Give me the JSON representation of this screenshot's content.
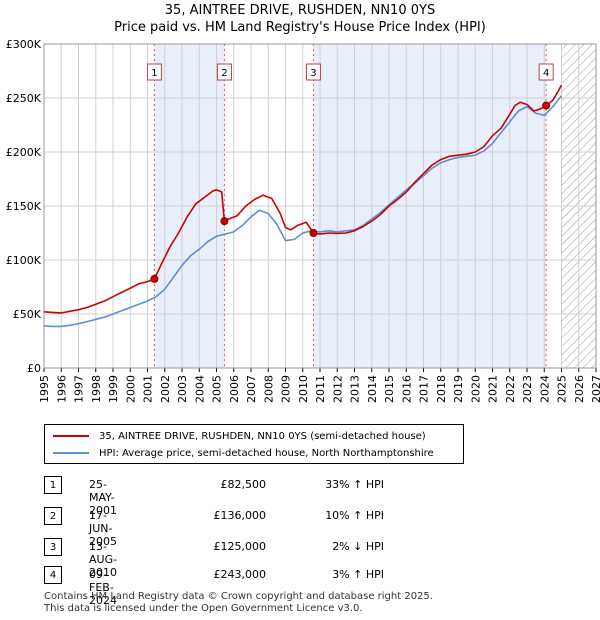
{
  "title_line1": "35, AINTREE DRIVE, RUSHDEN, NN10 0YS",
  "title_line2": "Price paid vs. HM Land Registry's House Price Index (HPI)",
  "chart_data": {
    "type": "line",
    "xlim": [
      1995,
      2027
    ],
    "ylim": [
      0,
      300000
    ],
    "y_ticks": [
      0,
      50000,
      100000,
      150000,
      200000,
      250000,
      300000
    ],
    "y_tick_labels": [
      "£0",
      "£50K",
      "£100K",
      "£150K",
      "£200K",
      "£250K",
      "£300K"
    ],
    "x_ticks": [
      1995,
      1996,
      1997,
      1998,
      1999,
      2000,
      2001,
      2002,
      2003,
      2004,
      2005,
      2006,
      2007,
      2008,
      2009,
      2010,
      2011,
      2012,
      2013,
      2014,
      2015,
      2016,
      2017,
      2018,
      2019,
      2020,
      2021,
      2022,
      2023,
      2024,
      2025,
      2026,
      2027
    ],
    "x_tick_labels": [
      "1995",
      "1996",
      "1997",
      "1998",
      "1999",
      "2000",
      "2001",
      "2002",
      "2003",
      "2004",
      "2005",
      "2006",
      "2007",
      "2008",
      "2009",
      "2010",
      "2011",
      "2012",
      "2013",
      "2014",
      "2015",
      "2016",
      "2017",
      "2018",
      "2019",
      "2020",
      "2021",
      "2022",
      "2023",
      "2024",
      "2025",
      "2026",
      "2027"
    ],
    "grid": true,
    "shaded_spans": [
      [
        2001.4,
        2005.46
      ],
      [
        2010.62,
        2024.11
      ]
    ],
    "forecast_start": 2025.0,
    "series": [
      {
        "name": "35, AINTREE DRIVE, RUSHDEN, NN10 0YS (semi-detached house)",
        "color": "#cc0000",
        "x": [
          1995,
          1995.5,
          1996,
          1996.5,
          1997,
          1997.5,
          1998,
          1998.5,
          1999,
          1999.5,
          2000,
          2000.5,
          2001,
          2001.4,
          2001.8,
          2002.3,
          2002.8,
          2003.3,
          2003.8,
          2004.3,
          2004.8,
          2005.0,
          2005.3,
          2005.46,
          2005.7,
          2006.2,
          2006.7,
          2007.2,
          2007.7,
          2008.2,
          2008.7,
          2009.0,
          2009.3,
          2009.7,
          2010.2,
          2010.62,
          2011,
          2011.5,
          2012,
          2012.5,
          2013,
          2013.5,
          2014,
          2014.5,
          2015,
          2015.5,
          2016,
          2016.5,
          2017,
          2017.5,
          2018,
          2018.5,
          2019,
          2019.5,
          2020,
          2020.5,
          2021,
          2021.5,
          2022,
          2022.3,
          2022.6,
          2023,
          2023.4,
          2023.8,
          2024.11,
          2024.5,
          2024.8,
          2025.0
        ],
        "values": [
          52000,
          51500,
          51000,
          52500,
          54000,
          56000,
          59000,
          62000,
          66000,
          70000,
          74000,
          78000,
          80000,
          82500,
          96000,
          112000,
          125000,
          140000,
          152000,
          158000,
          164000,
          165000,
          163000,
          136000,
          138000,
          141000,
          150000,
          156000,
          160000,
          157000,
          143000,
          130000,
          128000,
          132000,
          135000,
          125000,
          124000,
          125000,
          124500,
          125000,
          127000,
          131000,
          136000,
          142000,
          150000,
          156000,
          163000,
          172000,
          180000,
          188000,
          193000,
          196000,
          197000,
          198000,
          200000,
          205000,
          215000,
          222000,
          235000,
          243000,
          246000,
          244000,
          238000,
          240000,
          243000,
          248000,
          256000,
          262000
        ]
      },
      {
        "name": "HPI: Average price, semi-detached house, North Northamptonshire",
        "color": "#5b8fd6",
        "x": [
          1995,
          1995.5,
          1996,
          1996.5,
          1997,
          1997.5,
          1998,
          1998.5,
          1999,
          1999.5,
          2000,
          2000.5,
          2001,
          2001.5,
          2002,
          2002.5,
          2003,
          2003.5,
          2004,
          2004.5,
          2005,
          2005.5,
          2006,
          2006.5,
          2007,
          2007.5,
          2008,
          2008.5,
          2009,
          2009.5,
          2010,
          2010.5,
          2011,
          2011.5,
          2012,
          2012.5,
          2013,
          2013.5,
          2014,
          2014.5,
          2015,
          2015.5,
          2016,
          2016.5,
          2017,
          2017.5,
          2018,
          2018.5,
          2019,
          2019.5,
          2020,
          2020.5,
          2021,
          2021.5,
          2022,
          2022.5,
          2023,
          2023.5,
          2024,
          2024.5,
          2025.0
        ],
        "values": [
          39000,
          38500,
          38500,
          39500,
          41000,
          43000,
          45000,
          47000,
          50000,
          53000,
          56000,
          59000,
          62000,
          66000,
          73000,
          84000,
          95000,
          104000,
          110000,
          117000,
          122000,
          124000,
          126000,
          132000,
          140000,
          146000,
          143000,
          133000,
          118000,
          119000,
          125000,
          127000,
          126000,
          127000,
          126000,
          127000,
          128000,
          132000,
          138000,
          144000,
          151000,
          158000,
          165000,
          171000,
          178000,
          185000,
          190000,
          193000,
          195000,
          196000,
          197000,
          201000,
          208000,
          218000,
          228000,
          238000,
          242000,
          236000,
          234000,
          242000,
          252000
        ]
      }
    ],
    "transactions": [
      {
        "num": "1",
        "date": "25-MAY-2001",
        "price": "£82,500",
        "hpi": "33% ↑ HPI",
        "x": 2001.4,
        "y": 82500
      },
      {
        "num": "2",
        "date": "17-JUN-2005",
        "price": "£136,000",
        "hpi": "10% ↑ HPI",
        "x": 2005.46,
        "y": 136000
      },
      {
        "num": "3",
        "date": "13-AUG-2010",
        "price": "£125,000",
        "hpi": "2% ↓ HPI",
        "x": 2010.62,
        "y": 125000
      },
      {
        "num": "4",
        "date": "09-FEB-2024",
        "price": "£243,000",
        "hpi": "3% ↑ HPI",
        "x": 2024.11,
        "y": 243000
      }
    ],
    "colors": {
      "price_line": "#cc0000",
      "hpi_line": "#5b8fd6",
      "span_fill": "#e8eefa",
      "marker_line": "#e06060",
      "grid": "#d0d0d0"
    }
  },
  "legend": {
    "price_label": "35, AINTREE DRIVE, RUSHDEN, NN10 0YS (semi-detached house)",
    "hpi_label": "HPI: Average price, semi-detached house, North Northamptonshire"
  },
  "footer_line1": "Contains HM Land Registry data © Crown copyright and database right 2025.",
  "footer_line2": "This data is licensed under the Open Government Licence v3.0."
}
